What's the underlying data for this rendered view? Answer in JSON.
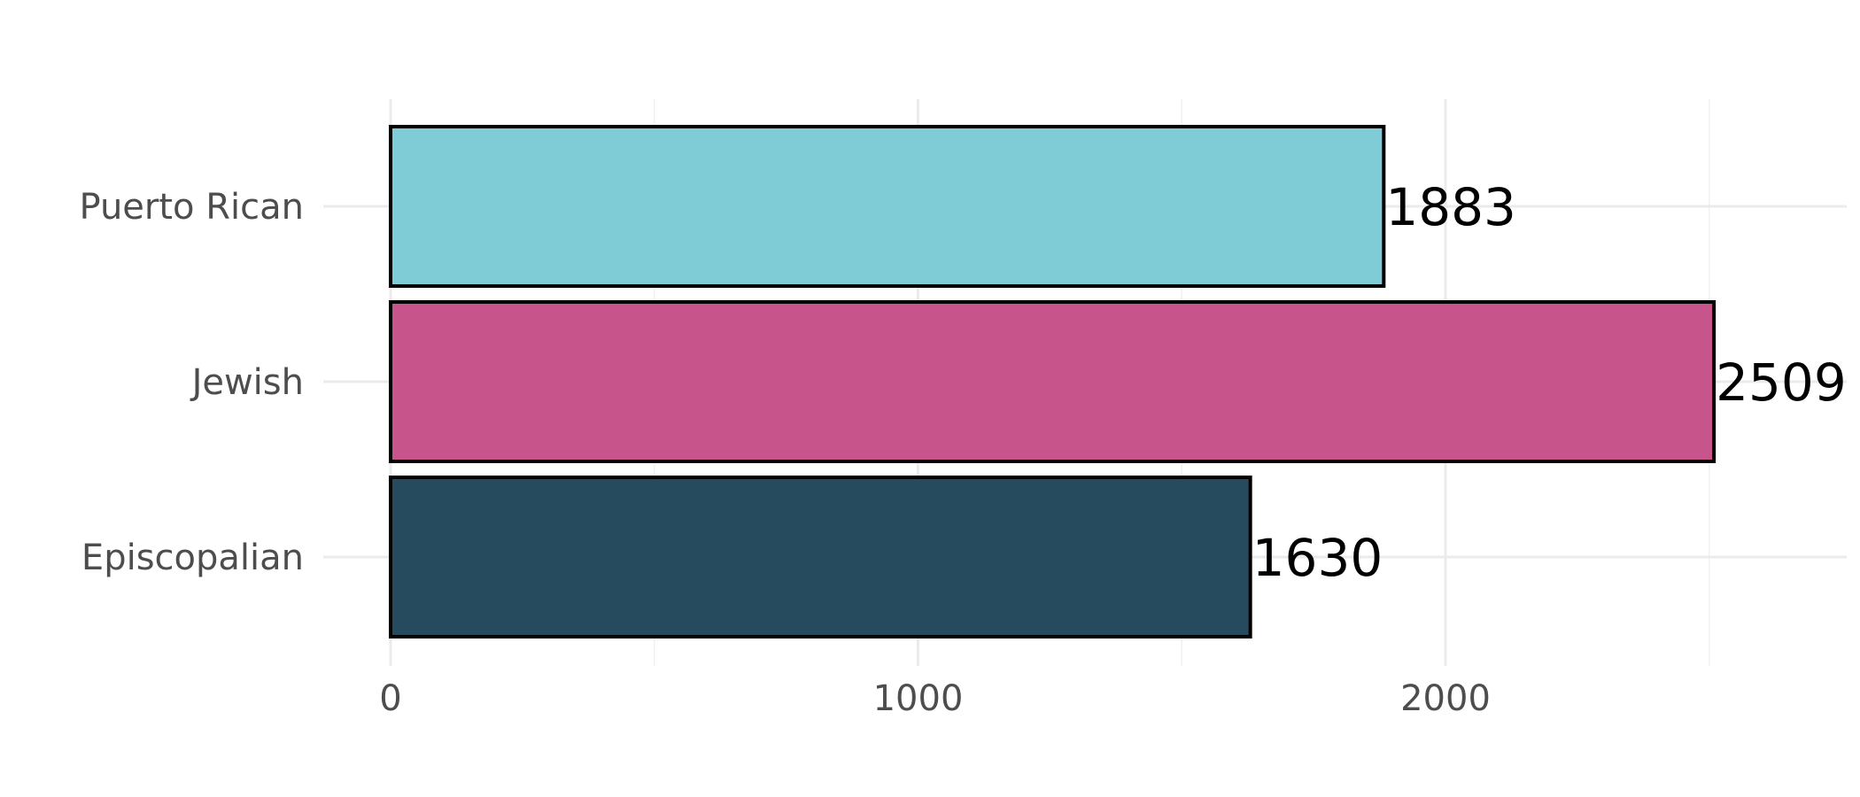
{
  "chart_data": {
    "type": "bar",
    "orientation": "horizontal",
    "categories": [
      "Puerto Rican",
      "Jewish",
      "Episcopalian"
    ],
    "values": [
      1883,
      2509,
      1630
    ],
    "colors": [
      "#7fccd6",
      "#c8548c",
      "#264b5e"
    ],
    "x_ticks": [
      0,
      1000,
      2000
    ],
    "xlim": [
      -130,
      2750
    ],
    "title": "",
    "xlabel": "",
    "ylabel": "",
    "grid": true,
    "legend": "none"
  }
}
